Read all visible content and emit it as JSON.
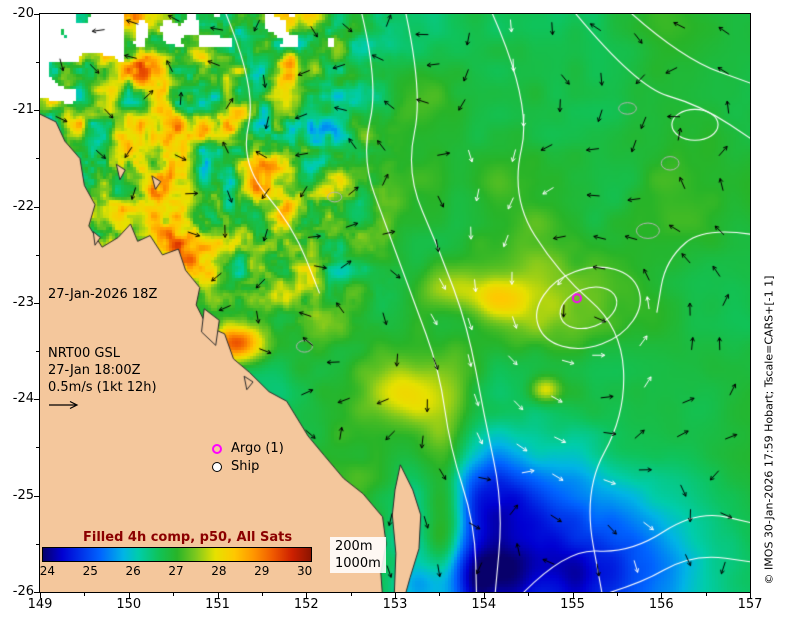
{
  "map": {
    "datetime_label": "27-Jan-2026 18Z",
    "model_block": {
      "line1": "NRT00 GSL",
      "line2": "27-Jan 18:00Z",
      "line3": "0.5m/s (1kt 12h)"
    },
    "legend": {
      "argo": "Argo (1)",
      "ship": "Ship"
    },
    "isobath_labels": {
      "shelf": "200m",
      "deep": "1000m"
    },
    "colorbar": {
      "title": "Filled 4h comp, p50, All Sats",
      "ticks": [
        "24",
        "25",
        "26",
        "27",
        "28",
        "29",
        "30"
      ]
    }
  },
  "axes": {
    "x_ticks": [
      "149",
      "150",
      "151",
      "152",
      "153",
      "154",
      "155",
      "156",
      "157"
    ],
    "y_ticks": [
      "-20",
      "-21",
      "-22",
      "-23",
      "-24",
      "-25",
      "-26"
    ]
  },
  "credit": "© IMOS 30-Jan-2026 17:59 Hobart; Tscale=CARS+[-1 1]",
  "colors": {
    "land": "#f4c79c",
    "coastline": "#2a2a2a",
    "contour_white": "#ffffff",
    "contour_gray": "#b4b4b4",
    "arrow_black": "#000000",
    "arrow_white": "#ffffff",
    "argo_magenta": "#ff00ff",
    "colorbar_title": "#8b0000",
    "jet_stops": [
      [
        0.0,
        "#08006b"
      ],
      [
        0.071,
        "#0000d2"
      ],
      [
        0.214,
        "#0064ff"
      ],
      [
        0.3,
        "#00b4e6"
      ],
      [
        0.357,
        "#00cdaa"
      ],
      [
        0.43,
        "#0fc35a"
      ],
      [
        0.5,
        "#28b428"
      ],
      [
        0.57,
        "#7dc81e"
      ],
      [
        0.643,
        "#e6e100"
      ],
      [
        0.714,
        "#ffc800"
      ],
      [
        0.786,
        "#ff9600"
      ],
      [
        0.857,
        "#f05a00"
      ],
      [
        0.929,
        "#cd2000"
      ],
      [
        1.0,
        "#8c1400"
      ]
    ]
  }
}
